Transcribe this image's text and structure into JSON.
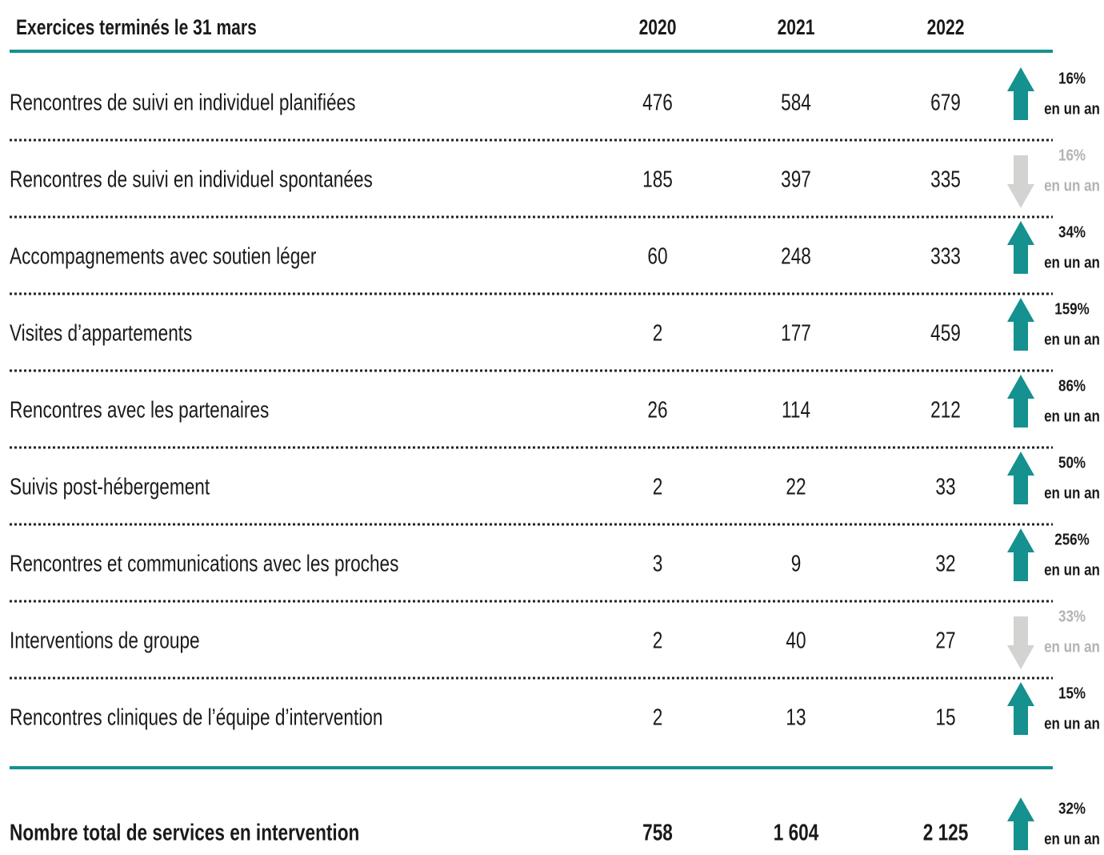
{
  "header": {
    "title": "Exercices terminés le 31 mars",
    "years": [
      "2020",
      "2021",
      "2022"
    ]
  },
  "rows": [
    {
      "label": "Rencontres de suivi en individuel planifiées",
      "values": [
        "476",
        "584",
        "679"
      ],
      "change": "16%",
      "change_note": "en un an",
      "trend": "up"
    },
    {
      "label": "Rencontres de suivi en individuel spontanées",
      "values": [
        "185",
        "397",
        "335"
      ],
      "change": "16%",
      "change_note": "en un an",
      "trend": "down"
    },
    {
      "label": "Accompagnements avec soutien léger",
      "values": [
        "60",
        "248",
        "333"
      ],
      "change": "34%",
      "change_note": "en un an",
      "trend": "up"
    },
    {
      "label": "Visites d’appartements",
      "values": [
        "2",
        "177",
        "459"
      ],
      "change": "159%",
      "change_note": "en un an",
      "trend": "up"
    },
    {
      "label": "Rencontres avec les partenaires",
      "values": [
        "26",
        "114",
        "212"
      ],
      "change": "86%",
      "change_note": "en un an",
      "trend": "up"
    },
    {
      "label": "Suivis post-hébergement",
      "values": [
        "2",
        "22",
        "33"
      ],
      "change": "50%",
      "change_note": "en un an",
      "trend": "up"
    },
    {
      "label": "Rencontres et communications avec les proches",
      "values": [
        "3",
        "9",
        "32"
      ],
      "change": "256%",
      "change_note": "en un an",
      "trend": "up"
    },
    {
      "label": "Interventions de groupe",
      "values": [
        "2",
        "40",
        "27"
      ],
      "change": "33%",
      "change_note": "en un an",
      "trend": "down"
    },
    {
      "label": "Rencontres cliniques de l’équipe d’intervention",
      "values": [
        "2",
        "13",
        "15"
      ],
      "change": "15%",
      "change_note": "en un an",
      "trend": "up"
    }
  ],
  "total": {
    "label": "Nombre total de services en intervention",
    "values": [
      "758",
      "1 604",
      "2 125"
    ],
    "change": "32%",
    "change_note": "en un an",
    "trend": "up"
  }
}
